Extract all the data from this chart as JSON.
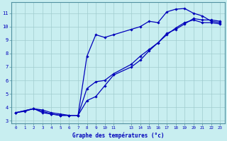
{
  "xlabel": "Graphe des températures (°c)",
  "bg_color": "#c8eef0",
  "line_color": "#0000bb",
  "grid_color": "#b0d8da",
  "xlim": [
    -0.5,
    23.5
  ],
  "ylim": [
    2.8,
    11.8
  ],
  "xticks": [
    0,
    1,
    2,
    3,
    4,
    5,
    6,
    7,
    8,
    9,
    10,
    11,
    13,
    14,
    15,
    16,
    17,
    18,
    19,
    20,
    21,
    22,
    23
  ],
  "yticks": [
    3,
    4,
    5,
    6,
    7,
    8,
    9,
    10,
    11
  ],
  "line1_x": [
    0,
    1,
    2,
    3,
    4,
    5,
    6,
    7,
    8,
    9,
    10,
    11,
    13,
    14,
    15,
    16,
    17,
    18,
    19,
    20,
    21,
    22,
    23
  ],
  "line1_y": [
    3.6,
    3.7,
    3.9,
    3.6,
    3.5,
    3.4,
    3.4,
    3.4,
    7.8,
    9.4,
    9.2,
    9.4,
    9.8,
    10.0,
    10.4,
    10.3,
    11.1,
    11.3,
    11.35,
    11.0,
    10.8,
    10.4,
    10.3
  ],
  "line2_x": [
    0,
    2,
    3,
    4,
    5,
    6,
    7,
    8,
    9,
    10,
    11,
    13,
    14,
    15,
    16,
    17,
    18,
    19,
    20,
    21,
    22,
    23
  ],
  "line2_y": [
    3.6,
    3.9,
    3.7,
    3.5,
    3.4,
    3.4,
    3.4,
    5.4,
    5.9,
    6.0,
    6.5,
    7.2,
    7.8,
    8.3,
    8.8,
    9.5,
    9.8,
    10.2,
    10.6,
    10.5,
    10.5,
    10.4
  ],
  "line3_x": [
    0,
    2,
    3,
    4,
    5,
    6,
    7,
    8,
    9,
    10,
    11,
    13,
    14,
    15,
    16,
    17,
    18,
    19,
    20,
    21,
    22,
    23
  ],
  "line3_y": [
    3.6,
    3.9,
    3.8,
    3.6,
    3.5,
    3.4,
    3.4,
    4.5,
    4.8,
    5.6,
    6.4,
    7.0,
    7.5,
    8.2,
    8.8,
    9.4,
    9.9,
    10.3,
    10.5,
    10.3,
    10.3,
    10.2
  ]
}
